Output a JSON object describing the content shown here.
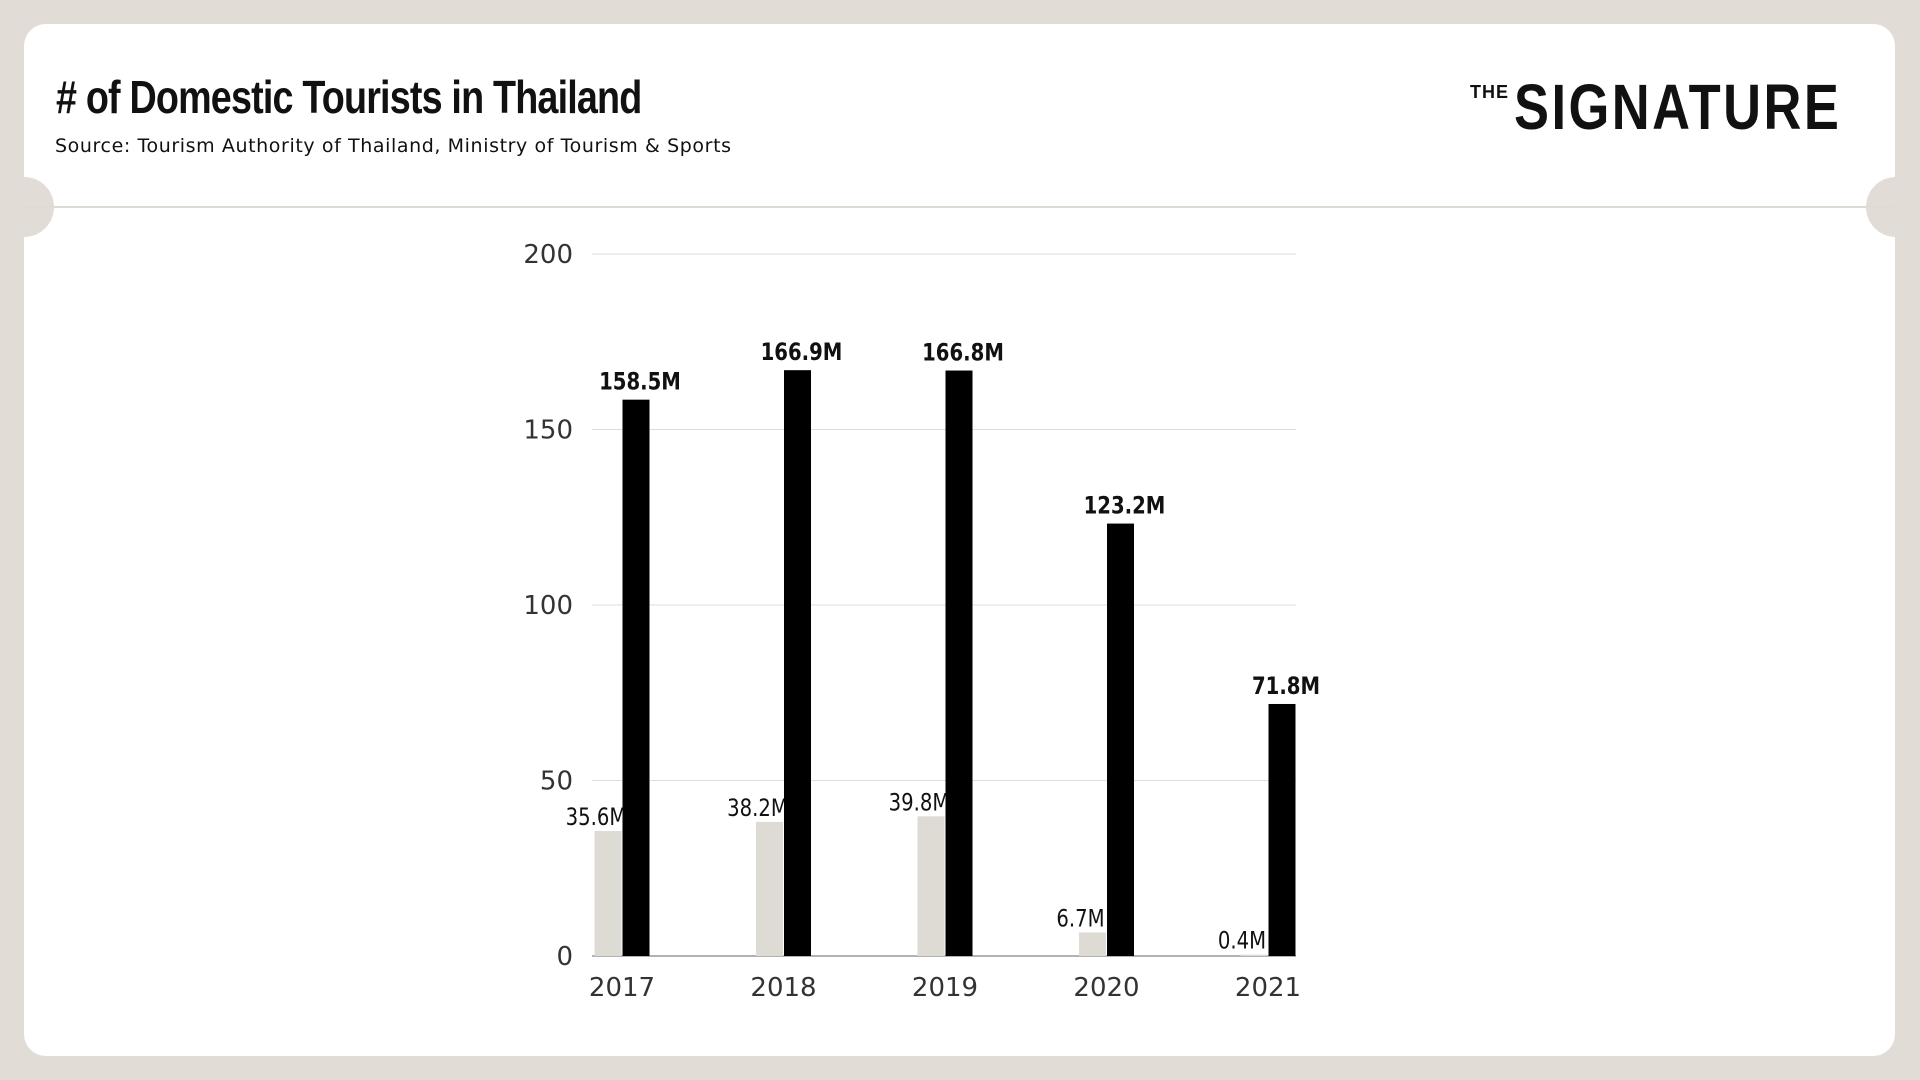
{
  "header": {
    "title": "# of Domestic Tourists in Thailand",
    "subtitle": "Source: Tourism Authority of Thailand, Ministry of Tourism & Sports"
  },
  "logo": {
    "small": "THE",
    "big": "SIGNATURE"
  },
  "colors": {
    "background": "#e1ddd6",
    "card": "#ffffff",
    "series_light": "#dedbd5",
    "series_dark": "#000000",
    "grid": "#dddddd"
  },
  "chart_data": {
    "type": "bar",
    "categories": [
      "2017",
      "2018",
      "2019",
      "2020",
      "2021"
    ],
    "series": [
      {
        "values": [
          35.6,
          38.2,
          39.8,
          6.7,
          0.4
        ],
        "labels": [
          "35.6M",
          "38.2M",
          "39.8M",
          "6.7M",
          "0.4M"
        ],
        "color": "#dedbd5"
      },
      {
        "values": [
          158.5,
          166.9,
          166.8,
          123.2,
          71.8
        ],
        "labels": [
          "158.5M",
          "166.9M",
          "166.8M",
          "123.2M",
          "71.8M"
        ],
        "color": "#000000"
      }
    ],
    "yticks": [
      "0",
      "50",
      "100",
      "150",
      "200"
    ],
    "ylim": [
      0,
      200
    ],
    "grid": true,
    "legend": "none"
  }
}
